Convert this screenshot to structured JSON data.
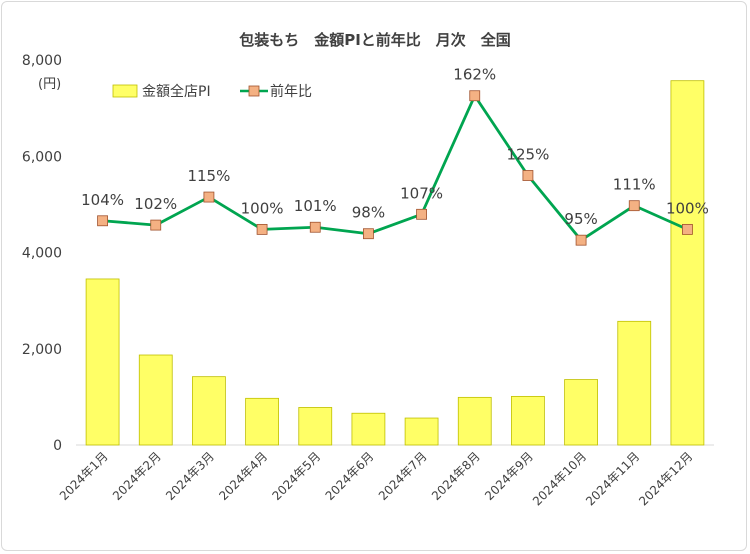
{
  "chart_data": {
    "type": "bar+line",
    "title": "包装もち　金額PIと前年比　月次　全国",
    "ylabel": "(円)",
    "ylim": [
      0,
      8000
    ],
    "yticks": [
      "0",
      "2,000",
      "4,000",
      "6,000",
      "8,000"
    ],
    "categories": [
      "2024年1月",
      "2024年2月",
      "2024年3月",
      "2024年4月",
      "2024年5月",
      "2024年6月",
      "2024年7月",
      "2024年8月",
      "2024年9月",
      "2024年10月",
      "2024年11月",
      "2024年12月"
    ],
    "series": [
      {
        "name": "金額全店PI",
        "kind": "bar",
        "color": "#ffff66",
        "values": [
          3450,
          1870,
          1420,
          970,
          780,
          660,
          560,
          990,
          1010,
          1360,
          2570,
          7570
        ]
      },
      {
        "name": "前年比",
        "kind": "line",
        "color": "#00a550",
        "marker_color": "#f4b183",
        "values": [
          104,
          102,
          115,
          100,
          101,
          98,
          107,
          162,
          125,
          95,
          111,
          100
        ],
        "labels": [
          "104%",
          "102%",
          "115%",
          "100%",
          "101%",
          "98%",
          "107%",
          "162%",
          "125%",
          "95%",
          "111%",
          "100%"
        ]
      }
    ],
    "legend": "top-left",
    "grid": false
  }
}
